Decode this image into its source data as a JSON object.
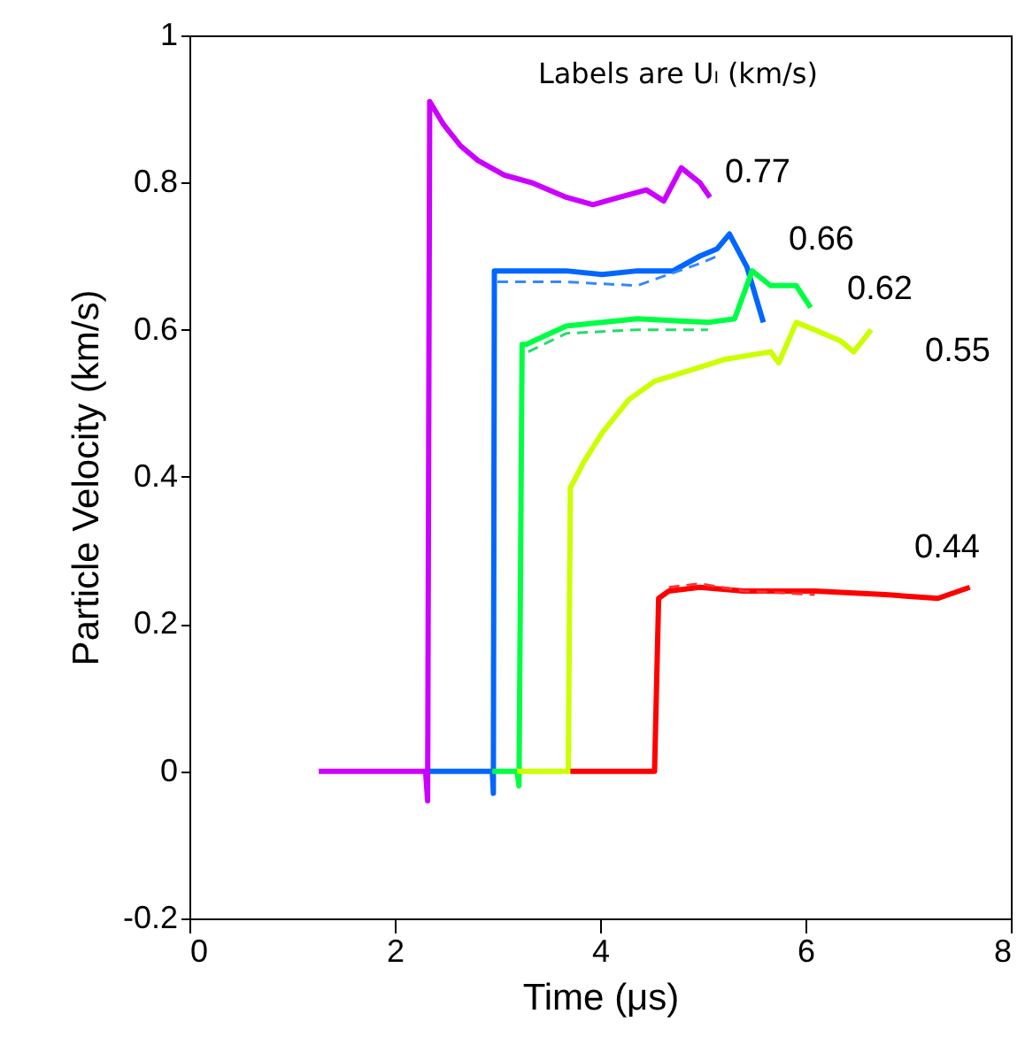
{
  "chart_data": {
    "type": "line",
    "xlabel": "Time (μs)",
    "ylabel": "Particle Velocity (km/s)",
    "xlim": [
      0,
      8
    ],
    "xticks": [
      0,
      2,
      4,
      6,
      8
    ],
    "ylim": [
      -0.2,
      1
    ],
    "yticks": [
      -0.2,
      0,
      0.2,
      0.4,
      0.6,
      0.8,
      1
    ],
    "grid": false,
    "line_style": "solid",
    "series": [
      {
        "color": "#cc00ff",
        "x": [
          1.26,
          1.8,
          2.3,
          2.32,
          2.34,
          2.47,
          2.64,
          2.81,
          3.07,
          3.33,
          3.67,
          3.93,
          4.19,
          4.45,
          4.62,
          4.79,
          4.97,
          5.07
        ],
        "values": [
          0,
          0,
          0,
          -0.04,
          0.91,
          0.88,
          0.85,
          0.83,
          0.81,
          0.8,
          0.78,
          0.77,
          0.78,
          0.79,
          0.775,
          0.82,
          0.8,
          0.78
        ]
      },
      {
        "color": "#0066ff",
        "x": [
          2.34,
          2.95,
          2.96,
          2.97,
          3.07,
          3.67,
          4.02,
          4.36,
          4.71,
          4.97,
          5.14,
          5.26,
          5.43,
          5.59
        ],
        "values": [
          0,
          0,
          -0.03,
          0.68,
          0.68,
          0.68,
          0.675,
          0.68,
          0.68,
          0.7,
          0.71,
          0.73,
          0.685,
          0.61
        ]
      },
      {
        "color": "#3388ff",
        "line_style": "dashed",
        "x": [
          3.0,
          3.67,
          4.36,
          4.97,
          5.14
        ],
        "values": [
          0.665,
          0.665,
          0.66,
          0.69,
          0.7
        ]
      },
      {
        "color": "#00ff44",
        "x": [
          2.95,
          3.19,
          3.21,
          3.24,
          3.28,
          3.67,
          4.36,
          5.05,
          5.31,
          5.48,
          5.66,
          5.91,
          6.05
        ],
        "values": [
          0,
          0,
          -0.02,
          0.58,
          0.58,
          0.605,
          0.615,
          0.61,
          0.615,
          0.68,
          0.66,
          0.66,
          0.63
        ]
      },
      {
        "color": "#22dd66",
        "line_style": "dashed",
        "x": [
          3.3,
          3.67,
          4.36,
          5.05
        ],
        "values": [
          0.57,
          0.595,
          0.6,
          0.6
        ]
      },
      {
        "color": "#ccff00",
        "x": [
          3.19,
          3.69,
          3.71,
          3.84,
          4.02,
          4.28,
          4.53,
          4.88,
          5.22,
          5.66,
          5.74,
          5.91,
          6.09,
          6.34,
          6.47,
          6.64
        ],
        "values": [
          0,
          0,
          0.385,
          0.42,
          0.46,
          0.505,
          0.53,
          0.545,
          0.56,
          0.57,
          0.555,
          0.61,
          0.6,
          0.585,
          0.57,
          0.6
        ]
      },
      {
        "color": "#ff0000",
        "x": [
          3.71,
          4.53,
          4.57,
          4.67,
          4.97,
          5.4,
          6.09,
          6.78,
          7.29,
          7.6
        ],
        "values": [
          0,
          0,
          0.235,
          0.245,
          0.25,
          0.245,
          0.245,
          0.24,
          0.235,
          0.25
        ]
      },
      {
        "color": "#ff3333",
        "line_style": "dashed",
        "x": [
          4.67,
          4.97,
          5.4,
          6.09
        ],
        "values": [
          0.25,
          0.255,
          0.245,
          0.24
        ]
      }
    ],
    "annotations": [
      "Labels are Uₗ (km/s)",
      "0.77",
      "0.66",
      "0.62",
      "0.55",
      "0.44"
    ]
  }
}
